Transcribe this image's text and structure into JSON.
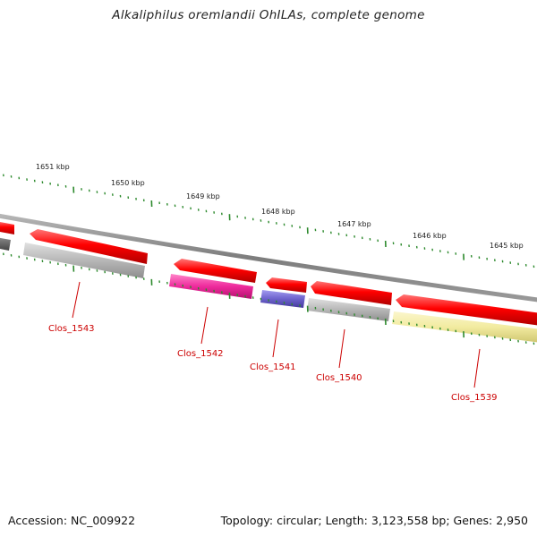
{
  "header": {
    "title": "Alkaliphilus oremlandii OhILAs, complete genome"
  },
  "footer": {
    "accession": "Accession: NC_009922",
    "summary": "Topology: circular; Length: 3,123,558 bp; Genes: 2,950"
  },
  "scale": {
    "tick_labels": [
      "1651 kbp",
      "1650 kbp",
      "1649 kbp",
      "1648 kbp",
      "1647 kbp",
      "1646 kbp",
      "1645 kbp"
    ],
    "tick_color": "#2d8a2d"
  },
  "genes": [
    {
      "name": "Clos_1543",
      "strand": "reverse",
      "color": "#b7b7b7"
    },
    {
      "name": "Clos_1542",
      "strand": "reverse",
      "color": "#ee2a9c"
    },
    {
      "name": "Clos_1541",
      "strand": "reverse",
      "color": "#6d62cc"
    },
    {
      "name": "Clos_1540",
      "strand": "reverse",
      "color": "#b7b7b7"
    },
    {
      "name": "Clos_1539",
      "strand": "reverse",
      "color": "#f2eba0"
    }
  ],
  "colors": {
    "cds": "#ff0000",
    "backbone": "#8a8a8a",
    "label": "#cc0000"
  }
}
